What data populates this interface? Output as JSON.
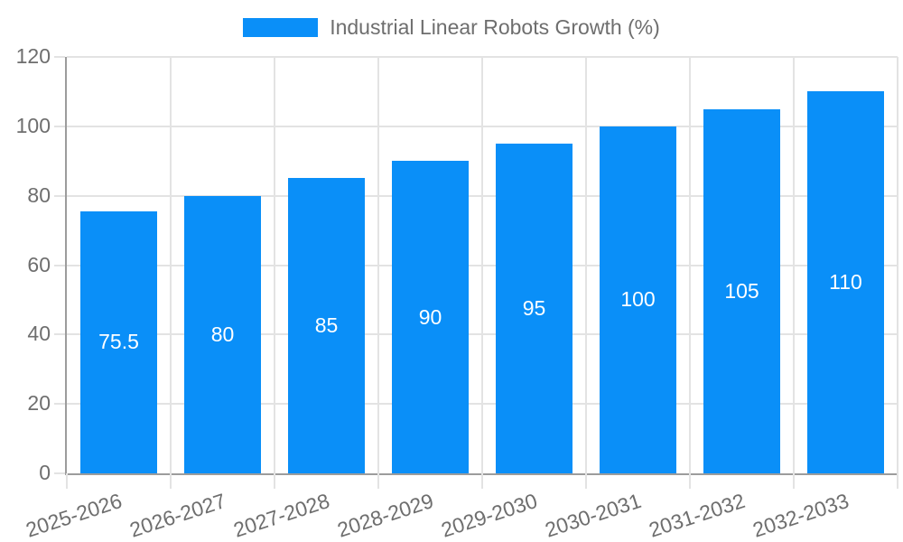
{
  "page": {
    "background_color": "#ffffff"
  },
  "chart_data": {
    "type": "bar",
    "title": "Industrial Linear Robots Growth (%)",
    "categories": [
      "2025-2026",
      "2026-2027",
      "2027-2028",
      "2028-2029",
      "2029-2030",
      "2030-2031",
      "2031-2032",
      "2032-2033"
    ],
    "values": [
      75.5,
      80,
      85,
      90,
      95,
      100,
      105,
      110
    ],
    "xlabel": "",
    "ylabel": "",
    "ylim": [
      0,
      120
    ],
    "yticks": [
      0,
      20,
      40,
      60,
      80,
      100,
      120
    ],
    "grid": true,
    "legend_position": "top",
    "x_label_rotation_deg": -18,
    "bar_color": "#0a8ff8",
    "bar_value_label_color": "#ffffff",
    "grid_color": "#e3e3e3",
    "axis_color": "#9c9c9c",
    "tick_text_color": "#6e6e6e"
  }
}
